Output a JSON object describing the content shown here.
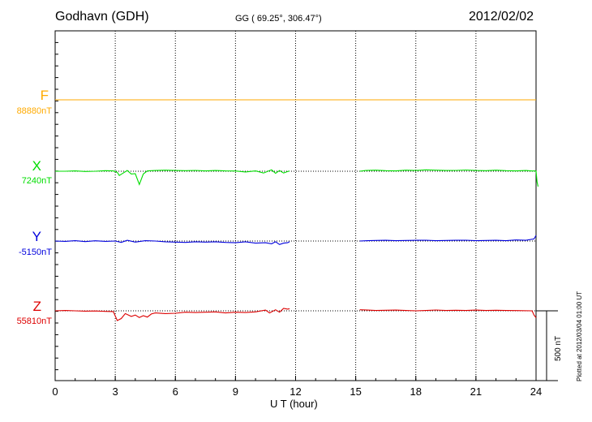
{
  "header": {
    "station": "Godhavn (GDH)",
    "coords": "GG ( 69.25°, 306.47°)",
    "date": "2012/02/02"
  },
  "footer": {
    "plotted": "Plotted at 2012/03/04 01:00 UT",
    "scale": "500 nT"
  },
  "colors": {
    "F": "#ffaa00",
    "X": "#00dd00",
    "Y": "#0000dd",
    "Z": "#dd0000",
    "grid": "#000000"
  },
  "chart_data": {
    "type": "line",
    "title": "",
    "xlabel": "U T (hour)",
    "ylabel": "",
    "xlim": [
      0,
      24
    ],
    "xticks": [
      0,
      3,
      6,
      9,
      12,
      15,
      18,
      21,
      24
    ],
    "xtick_labels": [
      "0",
      "3",
      "6",
      "9",
      "12",
      "15",
      "18",
      "21",
      "24"
    ],
    "scale_bar_nT": 500,
    "grid": true,
    "legend": "left",
    "series": [
      {
        "name": "F",
        "baseline_label": "88880nT",
        "points": [
          [
            0,
            0
          ],
          [
            12,
            0
          ],
          [
            15.2,
            0
          ],
          [
            24,
            0
          ]
        ]
      },
      {
        "name": "X",
        "baseline_label": "7240nT",
        "points": [
          [
            0,
            0
          ],
          [
            0.5,
            0
          ],
          [
            1,
            -5
          ],
          [
            1.5,
            3
          ],
          [
            2,
            0
          ],
          [
            2.5,
            -8
          ],
          [
            2.9,
            -5
          ],
          [
            3.1,
            15
          ],
          [
            3.2,
            60
          ],
          [
            3.4,
            25
          ],
          [
            3.6,
            -10
          ],
          [
            3.8,
            40
          ],
          [
            4,
            35
          ],
          [
            4.2,
            190
          ],
          [
            4.4,
            40
          ],
          [
            4.6,
            -5
          ],
          [
            5,
            -10
          ],
          [
            5.5,
            -15
          ],
          [
            6,
            -10
          ],
          [
            6.5,
            -8
          ],
          [
            7,
            -12
          ],
          [
            7.5,
            -5
          ],
          [
            8,
            -10
          ],
          [
            8.5,
            -5
          ],
          [
            9,
            -3
          ],
          [
            9.5,
            10
          ],
          [
            10,
            -5
          ],
          [
            10.4,
            25
          ],
          [
            10.8,
            -20
          ],
          [
            11,
            30
          ],
          [
            11.2,
            -10
          ],
          [
            11.4,
            25
          ],
          [
            11.6,
            5
          ],
          [
            11.7,
            -5
          ]
        ]
      },
      {
        "name": "X",
        "points": [
          [
            15.2,
            0
          ],
          [
            15.5,
            -10
          ],
          [
            16,
            -15
          ],
          [
            16.5,
            -8
          ],
          [
            17,
            -5
          ],
          [
            17.5,
            -15
          ],
          [
            18,
            -10
          ],
          [
            18.5,
            -20
          ],
          [
            19,
            -15
          ],
          [
            19.5,
            -10
          ],
          [
            20,
            -12
          ],
          [
            20.5,
            -18
          ],
          [
            21,
            -10
          ],
          [
            21.5,
            -8
          ],
          [
            22,
            -15
          ],
          [
            22.5,
            -8
          ],
          [
            23,
            -5
          ],
          [
            23.5,
            -10
          ],
          [
            23.8,
            -3
          ],
          [
            24,
            -5
          ]
        ]
      },
      {
        "name": "X",
        "points": [
          [
            24,
            -5
          ],
          [
            24.05,
            150
          ],
          [
            24.1,
            220
          ]
        ]
      },
      {
        "name": "Y",
        "baseline_label": "-5150nT",
        "points": [
          [
            0,
            0
          ],
          [
            0.5,
            5
          ],
          [
            1,
            -5
          ],
          [
            1.5,
            8
          ],
          [
            2,
            -3
          ],
          [
            2.5,
            5
          ],
          [
            3,
            0
          ],
          [
            3.3,
            20
          ],
          [
            3.6,
            -10
          ],
          [
            4,
            15
          ],
          [
            4.5,
            -5
          ],
          [
            5,
            0
          ],
          [
            5.5,
            10
          ],
          [
            6,
            15
          ],
          [
            6.5,
            20
          ],
          [
            7,
            10
          ],
          [
            7.5,
            15
          ],
          [
            8,
            10
          ],
          [
            8.5,
            20
          ],
          [
            9,
            25
          ],
          [
            9.5,
            10
          ],
          [
            10,
            30
          ],
          [
            10.5,
            25
          ],
          [
            10.8,
            40
          ],
          [
            11,
            10
          ],
          [
            11.2,
            50
          ],
          [
            11.4,
            30
          ],
          [
            11.6,
            25
          ],
          [
            11.7,
            10
          ]
        ]
      },
      {
        "name": "Y",
        "points": [
          [
            15.2,
            0
          ],
          [
            15.6,
            -5
          ],
          [
            16,
            -8
          ],
          [
            16.5,
            -10
          ],
          [
            17,
            -5
          ],
          [
            17.5,
            -8
          ],
          [
            18,
            -10
          ],
          [
            18.5,
            -12
          ],
          [
            19,
            -5
          ],
          [
            19.5,
            -8
          ],
          [
            20,
            -10
          ],
          [
            20.5,
            -12
          ],
          [
            21,
            -5
          ],
          [
            21.5,
            -8
          ],
          [
            22,
            -10
          ],
          [
            22.5,
            -5
          ],
          [
            23,
            -15
          ],
          [
            23.5,
            -10
          ],
          [
            23.9,
            -30
          ],
          [
            24,
            -80
          ]
        ]
      },
      {
        "name": "Z",
        "baseline_label": "55810nT",
        "points": [
          [
            0,
            0
          ],
          [
            0.5,
            -5
          ],
          [
            1,
            0
          ],
          [
            1.5,
            5
          ],
          [
            2,
            2
          ],
          [
            2.5,
            8
          ],
          [
            2.9,
            10
          ],
          [
            3.1,
            140
          ],
          [
            3.3,
            110
          ],
          [
            3.5,
            40
          ],
          [
            3.8,
            80
          ],
          [
            4,
            60
          ],
          [
            4.2,
            95
          ],
          [
            4.4,
            70
          ],
          [
            4.6,
            90
          ],
          [
            4.8,
            45
          ],
          [
            5,
            30
          ],
          [
            5.5,
            40
          ],
          [
            6,
            35
          ],
          [
            6.5,
            20
          ],
          [
            7,
            25
          ],
          [
            7.5,
            20
          ],
          [
            8,
            15
          ],
          [
            8.5,
            30
          ],
          [
            9,
            20
          ],
          [
            9.5,
            25
          ],
          [
            10,
            15
          ],
          [
            10.5,
            -10
          ],
          [
            10.7,
            30
          ],
          [
            11,
            -15
          ],
          [
            11.2,
            20
          ],
          [
            11.4,
            -35
          ],
          [
            11.6,
            -25
          ],
          [
            11.7,
            -30
          ]
        ]
      },
      {
        "name": "Z",
        "points": [
          [
            15.2,
            -15
          ],
          [
            15.6,
            -10
          ],
          [
            16,
            -5
          ],
          [
            16.5,
            -8
          ],
          [
            17,
            -10
          ],
          [
            17.5,
            -5
          ],
          [
            18,
            0
          ],
          [
            18.5,
            -5
          ],
          [
            19,
            -12
          ],
          [
            19.5,
            -5
          ],
          [
            20,
            -8
          ],
          [
            20.5,
            -5
          ],
          [
            21,
            -10
          ],
          [
            21.5,
            -5
          ],
          [
            22,
            -8
          ],
          [
            22.5,
            -5
          ],
          [
            23,
            -3
          ],
          [
            23.8,
            0
          ],
          [
            23.9,
            60
          ],
          [
            24,
            100
          ]
        ]
      }
    ]
  }
}
